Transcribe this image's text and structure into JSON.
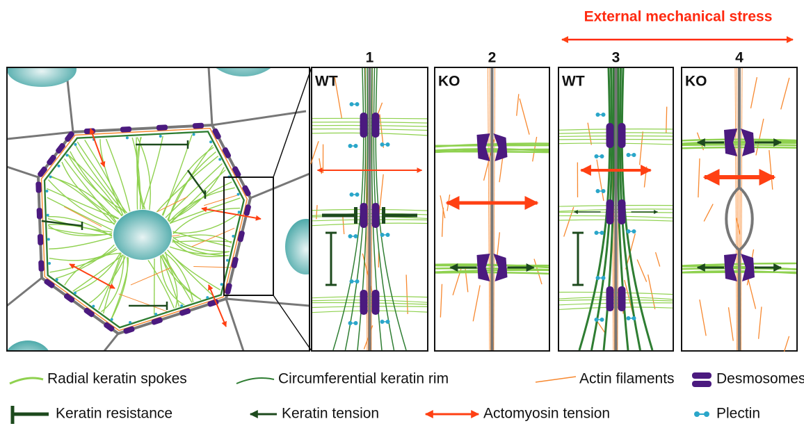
{
  "header": {
    "stress_label": "External mechanical stress"
  },
  "panels": [
    {
      "number": "1",
      "genotype": "WT"
    },
    {
      "number": "2",
      "genotype": "KO"
    },
    {
      "number": "3",
      "genotype": "WT"
    },
    {
      "number": "4",
      "genotype": "KO"
    }
  ],
  "legend": [
    {
      "label": "Radial keratin spokes"
    },
    {
      "label": "Circumferential keratin rim"
    },
    {
      "label": "Actin filaments"
    },
    {
      "label": "Desmosomes"
    },
    {
      "label": "Keratin resistance"
    },
    {
      "label": "Keratin tension"
    },
    {
      "label": "Actomyosin tension"
    },
    {
      "label": "Plectin"
    }
  ]
}
